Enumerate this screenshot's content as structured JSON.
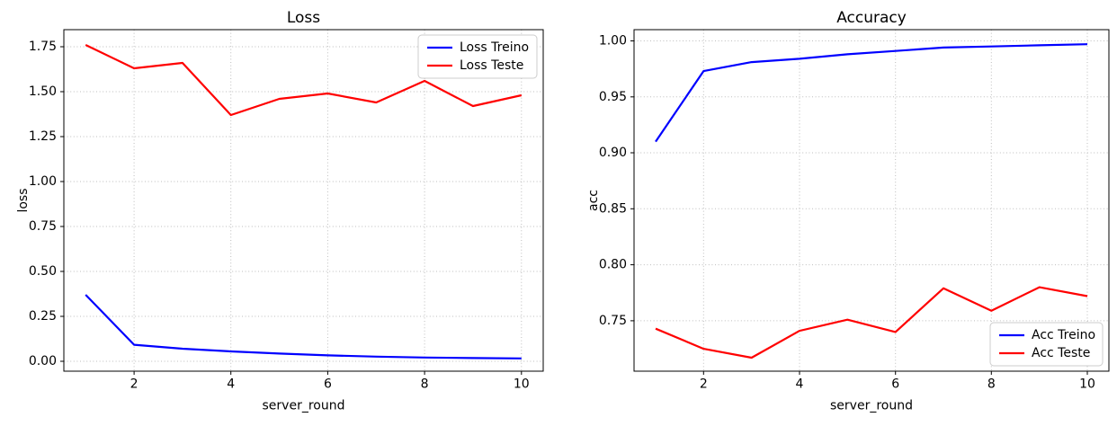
{
  "figure": {
    "background": "#ffffff"
  },
  "chart_data": [
    {
      "type": "line",
      "title": "Loss",
      "xlabel": "server_round",
      "ylabel": "loss",
      "x": [
        1,
        2,
        3,
        4,
        5,
        6,
        7,
        8,
        9,
        10
      ],
      "series": [
        {
          "name": "Loss Treino",
          "color": "#0000ff",
          "values": [
            0.37,
            0.092,
            0.07,
            0.055,
            0.043,
            0.033,
            0.026,
            0.021,
            0.018,
            0.016
          ]
        },
        {
          "name": "Loss Teste",
          "color": "#ff0000",
          "values": [
            1.76,
            1.63,
            1.66,
            1.37,
            1.46,
            1.49,
            1.44,
            1.56,
            1.42,
            1.48
          ]
        }
      ],
      "xticks": [
        2,
        4,
        6,
        8,
        10
      ],
      "yticks": [
        "0.00",
        "0.25",
        "0.50",
        "0.75",
        "1.00",
        "1.25",
        "1.50",
        "1.75"
      ],
      "ytick_values": [
        0.0,
        0.25,
        0.5,
        0.75,
        1.0,
        1.25,
        1.5,
        1.75
      ],
      "xlim": [
        0.55,
        10.45
      ],
      "ylim": [
        -0.055,
        1.845
      ],
      "grid": "dotted",
      "grid_color": "#bdbdbd",
      "legend": {
        "position": "upper-right"
      }
    },
    {
      "type": "line",
      "title": "Accuracy",
      "xlabel": "server_round",
      "ylabel": "acc",
      "x": [
        1,
        2,
        3,
        4,
        5,
        6,
        7,
        8,
        9,
        10
      ],
      "series": [
        {
          "name": "Acc Treino",
          "color": "#0000ff",
          "values": [
            0.91,
            0.973,
            0.981,
            0.984,
            0.988,
            0.991,
            0.994,
            0.995,
            0.996,
            0.997
          ]
        },
        {
          "name": "Acc Teste",
          "color": "#ff0000",
          "values": [
            0.743,
            0.725,
            0.717,
            0.741,
            0.751,
            0.74,
            0.779,
            0.759,
            0.78,
            0.772
          ]
        }
      ],
      "xticks": [
        2,
        4,
        6,
        8,
        10
      ],
      "yticks": [
        "0.75",
        "0.80",
        "0.85",
        "0.90",
        "0.95",
        "1.00"
      ],
      "ytick_values": [
        0.75,
        0.8,
        0.85,
        0.9,
        0.95,
        1.0
      ],
      "xlim": [
        0.55,
        10.45
      ],
      "ylim": [
        0.705,
        1.01
      ],
      "grid": "dotted",
      "grid_color": "#bdbdbd",
      "legend": {
        "position": "lower-right"
      }
    }
  ]
}
